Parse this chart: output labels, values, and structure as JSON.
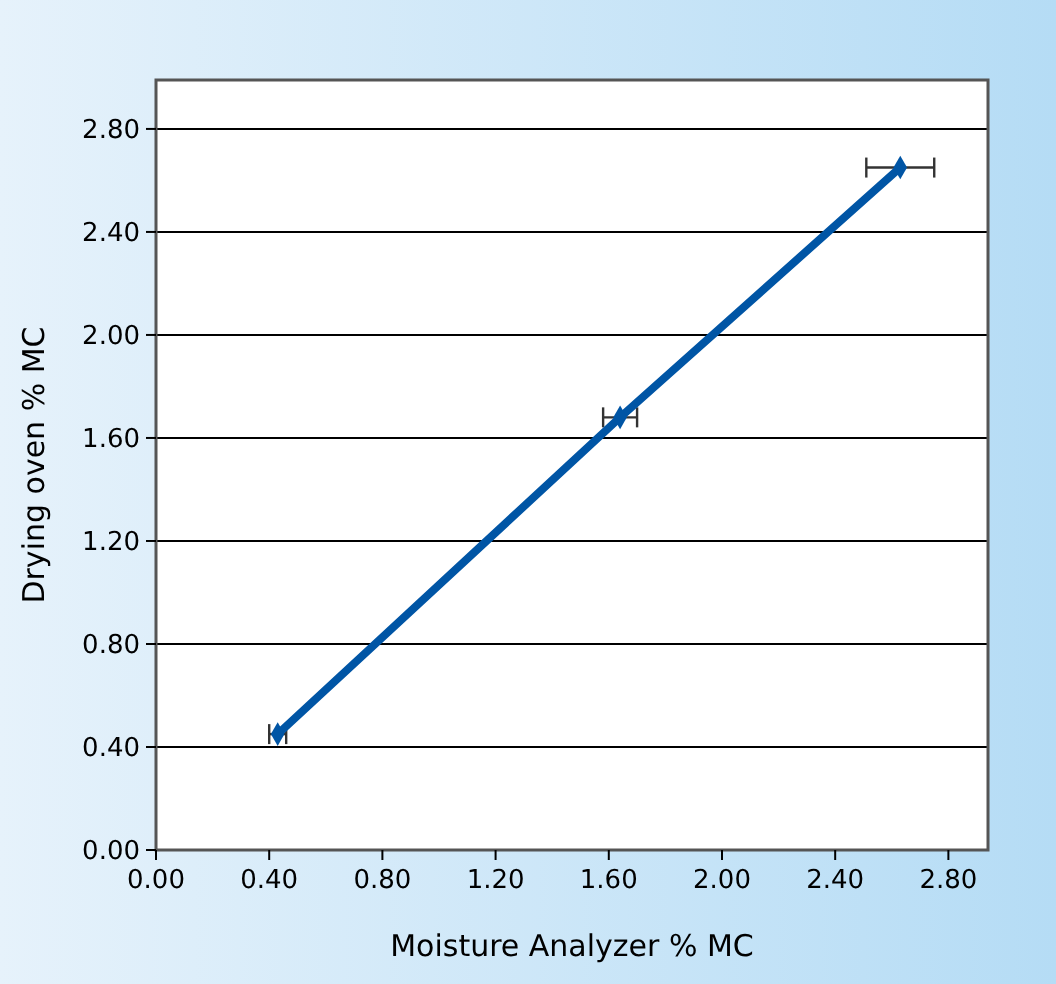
{
  "chart_data": {
    "type": "line",
    "xlabel": "Moisture Analyzer % MC",
    "ylabel": "Drying oven % MC",
    "x": [
      0.43,
      1.64,
      2.63
    ],
    "series": [
      {
        "color": "#0055a5",
        "values": [
          0.45,
          1.68,
          2.65
        ],
        "xerrors": [
          0.03,
          0.06,
          0.12
        ]
      }
    ],
    "xlim": [
      0,
      2.94
    ],
    "ylim": [
      0,
      2.99
    ],
    "xticks": [
      {
        "value": 0,
        "label": "0.00"
      },
      {
        "value": 0.4,
        "label": "0.40"
      },
      {
        "value": 0.8,
        "label": "0.80"
      },
      {
        "value": 1.2,
        "label": "1.20"
      },
      {
        "value": 1.6,
        "label": "1.60"
      },
      {
        "value": 2,
        "label": "2.00"
      },
      {
        "value": 2.4,
        "label": "2.40"
      },
      {
        "value": 2.8,
        "label": "2.80"
      }
    ],
    "yticks": [
      {
        "value": 0,
        "label": "0.00"
      },
      {
        "value": 0.4,
        "label": "0.40"
      },
      {
        "value": 0.8,
        "label": "0.80"
      },
      {
        "value": 1.2,
        "label": "1.20"
      },
      {
        "value": 1.6,
        "label": "1.60"
      },
      {
        "value": 2,
        "label": "2.00"
      },
      {
        "value": 2.4,
        "label": "2.40"
      },
      {
        "value": 2.8,
        "label": "2.80"
      }
    ],
    "grid": "y",
    "marker": "diamond",
    "line_style": "solid"
  }
}
